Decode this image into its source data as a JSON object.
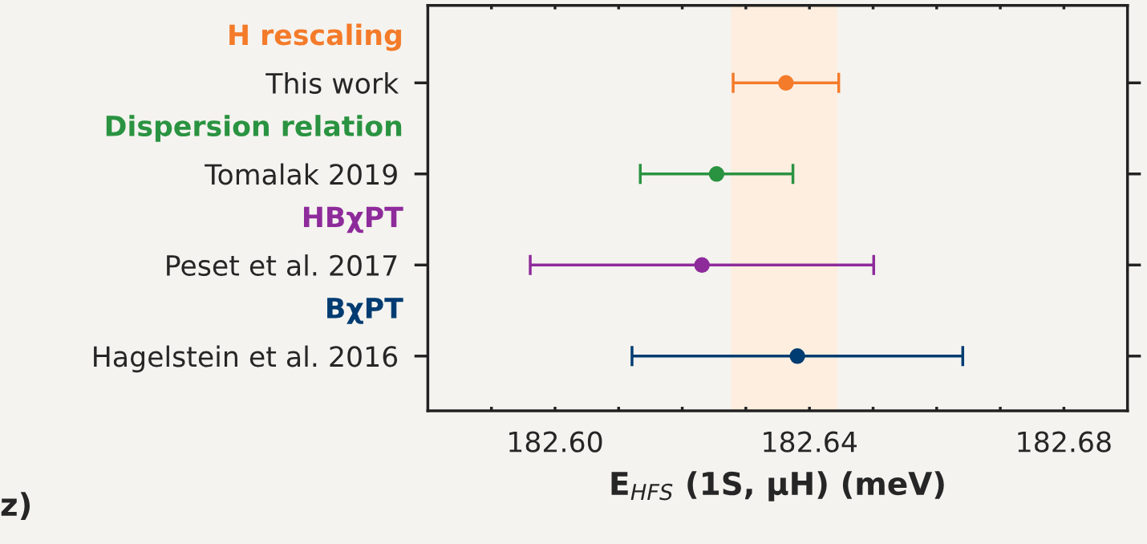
{
  "chart_data": {
    "type": "scatter",
    "orientation": "horizontal",
    "categories": [
      "This work",
      "Tomalak 2019",
      "Peset et al. 2017",
      "Hagelstein et al. 2016"
    ],
    "series": [
      {
        "name": "H rescaling",
        "color": "#f47b2a",
        "values": [
          182.6363,
          null,
          null,
          null
        ],
        "errors": [
          0.0083,
          null,
          null,
          null
        ]
      },
      {
        "name": "Dispersion relation",
        "color": "#2a9341",
        "values": [
          null,
          182.6254,
          null,
          null
        ],
        "errors": [
          null,
          0.012,
          null,
          null
        ]
      },
      {
        "name": "HBχPT",
        "color": "#8e2b9b",
        "values": [
          null,
          null,
          182.6231,
          null
        ],
        "errors": [
          null,
          null,
          0.027,
          null
        ]
      },
      {
        "name": "BχPT",
        "color": "#003c71",
        "values": [
          null,
          null,
          null,
          182.6381
        ],
        "errors": [
          null,
          null,
          null,
          0.026
        ]
      }
    ],
    "marker": "circle",
    "legend": false,
    "grid": false,
    "xlim": [
      182.58,
      182.69
    ],
    "xticks": [
      {
        "value": 182.59,
        "label": null
      },
      {
        "value": 182.6,
        "label": "182.60"
      },
      {
        "value": 182.61,
        "label": null
      },
      {
        "value": 182.62,
        "label": null
      },
      {
        "value": 182.63,
        "label": null
      },
      {
        "value": 182.64,
        "label": "182.64"
      },
      {
        "value": 182.65,
        "label": null
      },
      {
        "value": 182.66,
        "label": null
      },
      {
        "value": 182.67,
        "label": null
      },
      {
        "value": 182.68,
        "label": "182.68"
      }
    ],
    "bands": [
      {
        "axis": "x",
        "from": 182.6277,
        "to": 182.6444,
        "color": "#fdeee0"
      }
    ],
    "xlabel": "E$_{HFS}$ (1S, μH) (meV)",
    "annotations": [
      "z)"
    ]
  }
}
